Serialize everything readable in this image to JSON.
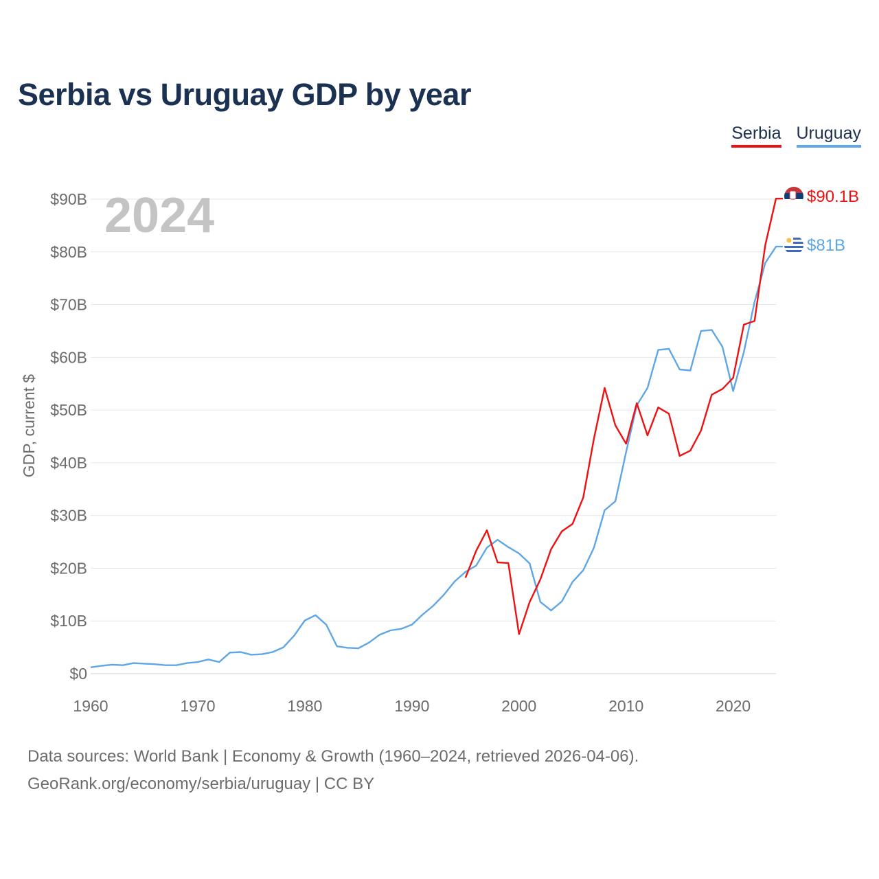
{
  "colors": {
    "serbia": "#ee1111",
    "uruguay": "#5ea6e6",
    "title": "#1b3152",
    "axis_text": "#6c6c6c",
    "year_watermark": "#c4c4c4"
  },
  "flags": {
    "serbia": "serbia-flag-icon",
    "uruguay": "uruguay-flag-icon"
  },
  "chart_data": {
    "type": "line",
    "title": "Serbia vs Uruguay GDP by year",
    "ylabel": "GDP, current $",
    "xlabel": "",
    "year_label": "2024",
    "xlim": [
      1960,
      2024
    ],
    "ylim": [
      0,
      90
    ],
    "x_ticks": [
      "1960",
      "1970",
      "1980",
      "1990",
      "2000",
      "2010",
      "2020"
    ],
    "y_ticks": [
      "$0",
      "$10B",
      "$20B",
      "$30B",
      "$40B",
      "$50B",
      "$60B",
      "$70B",
      "$80B",
      "$90B"
    ],
    "unit": "billion USD",
    "series": [
      {
        "name": "Serbia",
        "end_label": "$90.1B",
        "x": [
          1995,
          1996,
          1997,
          1998,
          1999,
          2000,
          2001,
          2002,
          2003,
          2004,
          2005,
          2006,
          2007,
          2008,
          2009,
          2010,
          2011,
          2012,
          2013,
          2014,
          2015,
          2016,
          2017,
          2018,
          2019,
          2020,
          2021,
          2022,
          2023,
          2024
        ],
        "values": [
          18.2,
          23.3,
          27.2,
          21.1,
          21.0,
          7.5,
          13.6,
          17.9,
          23.6,
          27.0,
          28.4,
          33.4,
          44.6,
          54.2,
          47.1,
          43.6,
          51.3,
          45.2,
          50.5,
          49.3,
          41.3,
          42.3,
          46.1,
          52.9,
          54.0,
          56.1,
          66.2,
          66.9,
          81.3,
          90.1
        ]
      },
      {
        "name": "Uruguay",
        "end_label": "$81B",
        "x": [
          1960,
          1961,
          1962,
          1963,
          1964,
          1965,
          1966,
          1967,
          1968,
          1969,
          1970,
          1971,
          1972,
          1973,
          1974,
          1975,
          1976,
          1977,
          1978,
          1979,
          1980,
          1981,
          1982,
          1983,
          1984,
          1985,
          1986,
          1987,
          1988,
          1989,
          1990,
          1991,
          1992,
          1993,
          1994,
          1995,
          1996,
          1997,
          1998,
          1999,
          2000,
          2001,
          2002,
          2003,
          2004,
          2005,
          2006,
          2007,
          2008,
          2009,
          2010,
          2011,
          2012,
          2013,
          2014,
          2015,
          2016,
          2017,
          2018,
          2019,
          2020,
          2021,
          2022,
          2023,
          2024
        ],
        "values": [
          1.2,
          1.5,
          1.7,
          1.6,
          2.0,
          1.9,
          1.8,
          1.6,
          1.6,
          2.0,
          2.2,
          2.7,
          2.2,
          4.0,
          4.1,
          3.6,
          3.7,
          4.1,
          5.0,
          7.2,
          10.1,
          11.1,
          9.3,
          5.2,
          4.9,
          4.8,
          5.9,
          7.4,
          8.2,
          8.5,
          9.3,
          11.2,
          12.9,
          15.0,
          17.5,
          19.3,
          20.5,
          23.9,
          25.4,
          24.0,
          22.8,
          20.9,
          13.6,
          12.0,
          13.7,
          17.4,
          19.6,
          23.9,
          31.0,
          32.7,
          42.0,
          50.9,
          54.2,
          61.4,
          61.6,
          57.7,
          57.5,
          65.0,
          65.2,
          62.0,
          53.6,
          61.0,
          70.5,
          77.9,
          81.0
        ]
      }
    ],
    "legend_position": "top-right"
  },
  "legend": {
    "serbia": "Serbia",
    "uruguay": "Uruguay"
  },
  "footer": {
    "line1": "Data sources: World Bank | Economy & Growth (1960–2024, retrieved 2026-04-06).",
    "line2": "GeoRank.org/economy/serbia/uruguay | CC BY"
  }
}
